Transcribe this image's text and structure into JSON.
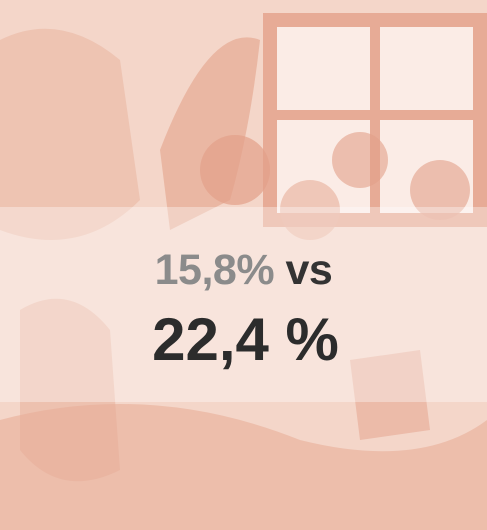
{
  "comparison": {
    "before": "15,8%",
    "connector": "vs",
    "after": "22,4 %"
  }
}
